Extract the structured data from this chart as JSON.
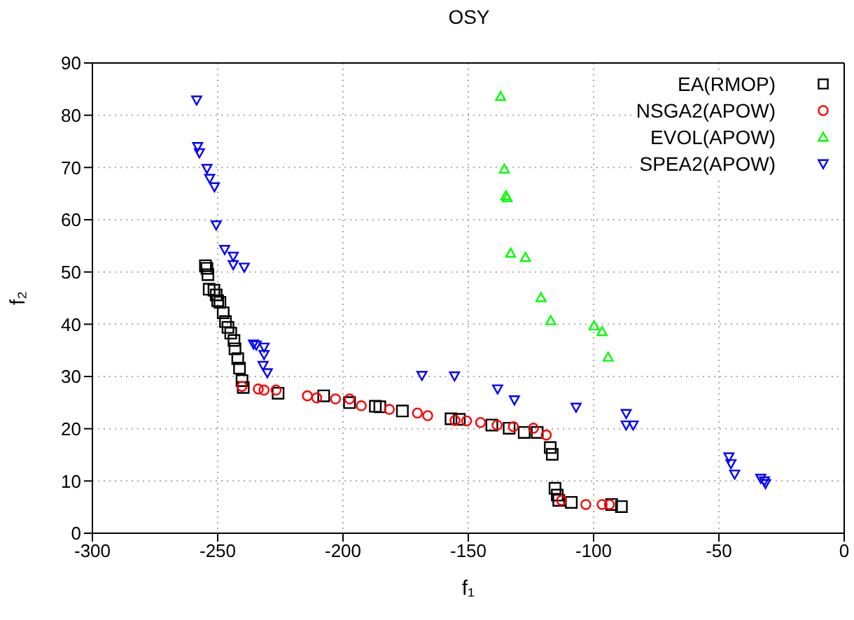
{
  "chart_data": {
    "type": "scatter",
    "title": "OSY",
    "xlabel": "f₁",
    "ylabel": "f₂",
    "xlim": [
      -300,
      0
    ],
    "xticks": [
      -300,
      -250,
      -200,
      -150,
      -100,
      -50,
      0
    ],
    "ylim": [
      0,
      90
    ],
    "yticks": [
      0,
      10,
      20,
      30,
      40,
      50,
      60,
      70,
      80,
      90
    ],
    "grid": true,
    "legend": "top right",
    "series": [
      {
        "name": "EA(RMOP)",
        "color": "#000000",
        "marker": "square",
        "x": [
          -254.9,
          -254.3,
          -253.9,
          -253.4,
          -251.5,
          -250.6,
          -250,
          -249.1,
          -247.8,
          -246.9,
          -245.9,
          -244.8,
          -243.5,
          -243.1,
          -242,
          -241.3,
          -240.3,
          -239.8,
          -225.9,
          -207.7,
          -197.4,
          -187.1,
          -185.3,
          -176.3,
          -156.9,
          -153.6,
          -140.6,
          -133.7,
          -127.7,
          -122.5,
          -117.3,
          -116.5,
          -115.4,
          -114.5,
          -113.9,
          -108.9,
          -92.8,
          -88.9
        ],
        "values": [
          51.2,
          50.7,
          49.5,
          46.7,
          46.5,
          45.6,
          44.5,
          44.2,
          42.2,
          40.5,
          39.4,
          38.3,
          36.9,
          35.3,
          33.4,
          31.6,
          29.2,
          27.9,
          26.8,
          26.3,
          25,
          24.3,
          24.2,
          23.4,
          21.9,
          21.8,
          20.7,
          20.1,
          19.3,
          19.3,
          16.4,
          15.1,
          8.6,
          7.3,
          6.3,
          5.9,
          5.5,
          5.1
        ]
      },
      {
        "name": "NSGA2(APOW)",
        "color": "#ff0000",
        "marker": "circle",
        "x": [
          -240.3,
          -233.8,
          -231.5,
          -226.7,
          -214.2,
          -210.5,
          -203,
          -197.4,
          -192.7,
          -181.5,
          -170.3,
          -166.2,
          -155.3,
          -150.7,
          -145.1,
          -138.5,
          -132,
          -124,
          -118.9,
          -112.8,
          -103.1,
          -96.6,
          -93.7
        ],
        "values": [
          28.1,
          27.6,
          27.4,
          27.4,
          26.3,
          25.9,
          25.7,
          25.7,
          24.4,
          23.7,
          23,
          22.5,
          21.6,
          21.5,
          21.2,
          20.7,
          20.4,
          20.1,
          18.8,
          6.3,
          5.5,
          5.5,
          5.5
        ]
      },
      {
        "name": "EVOL(APOW)",
        "color": "#00ff00",
        "marker": "triangle",
        "x": [
          -137.1,
          -135.6,
          -135,
          -134.5,
          -133.1,
          -127.2,
          -121,
          -117.1,
          -99.8,
          -96.6,
          -94.2
        ],
        "values": [
          83.6,
          69.7,
          64.6,
          64.2,
          53.6,
          52.8,
          45.1,
          40.7,
          39.7,
          38.6,
          33.7
        ]
      },
      {
        "name": "SPEA2(APOW)",
        "color": "#0000ff",
        "marker": "triangle-down",
        "x": [
          -258.4,
          -258,
          -257.3,
          -254.3,
          -253.2,
          -251.3,
          -250.6,
          -247.2,
          -243.8,
          -243.8,
          -239.4,
          -235.7,
          -234.6,
          -231.5,
          -231.5,
          -231.9,
          -230.2,
          -168.5,
          -155.5,
          -138.3,
          -131.6,
          -107,
          -87,
          -87,
          -84.2,
          -46,
          -45.2,
          -43.7,
          -33.3,
          -31.8,
          -31.4
        ],
        "values": [
          82.9,
          74,
          72.8,
          69.8,
          67.9,
          66.3,
          59,
          54.3,
          53,
          51.4,
          50.9,
          36.2,
          36,
          35.6,
          34.2,
          32.1,
          30.7,
          30.2,
          30.1,
          27.6,
          25.5,
          24.1,
          22.9,
          20.7,
          20.7,
          14.6,
          13.3,
          11.3,
          10.5,
          10,
          9.5
        ]
      }
    ]
  }
}
